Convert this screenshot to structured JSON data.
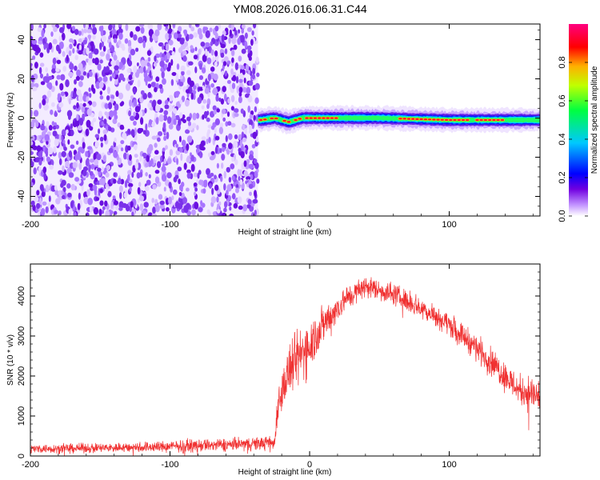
{
  "title": "YM08.2026.016.06.31.C44",
  "chart_data": [
    {
      "type": "heatmap",
      "xlabel": "Height of straight line (km)",
      "ylabel": "Frequency (Hz)",
      "xlim": [
        -200,
        165
      ],
      "ylim": [
        -50,
        48
      ],
      "xticks": [
        -200,
        -100,
        0,
        100
      ],
      "yticks": [
        -40,
        -20,
        0,
        20,
        40
      ],
      "colorbar": {
        "label": "Normalized spectral amplitude",
        "range": [
          0,
          1
        ],
        "ticks": [
          "0.0",
          "0.2",
          "0.4",
          "0.6",
          "0.8"
        ],
        "colormap": [
          "#ffffff",
          "#b070ff",
          "#6000e0",
          "#0000ff",
          "#00c8ff",
          "#00ff60",
          "#c0ff00",
          "#ffb000",
          "#ff0000",
          "#ff0080"
        ]
      },
      "noise_region_x": [
        -200,
        -37
      ],
      "signal_region_x": [
        -37,
        165
      ],
      "ridge": [
        {
          "x": -35,
          "f": -1
        },
        {
          "x": -25,
          "f": 0
        },
        {
          "x": -15,
          "f": -2
        },
        {
          "x": -5,
          "f": 0
        },
        {
          "x": 20,
          "f": 0
        },
        {
          "x": 50,
          "f": 0
        },
        {
          "x": 100,
          "f": -1
        },
        {
          "x": 165,
          "f": -1
        }
      ]
    },
    {
      "type": "line",
      "xlabel": "Height of straight line (km)",
      "ylabel": "SNR (10 * v/v)",
      "xlim": [
        -200,
        165
      ],
      "ylim": [
        0,
        4800
      ],
      "xticks": [
        -200,
        -100,
        0,
        100
      ],
      "yticks": [
        0,
        1000,
        2000,
        3000,
        4000
      ],
      "series": [
        {
          "color": "#f03030",
          "envelope": [
            {
              "x": -200,
              "y": 180,
              "spread": 200
            },
            {
              "x": -150,
              "y": 200,
              "spread": 220
            },
            {
              "x": -100,
              "y": 240,
              "spread": 260
            },
            {
              "x": -60,
              "y": 280,
              "spread": 300
            },
            {
              "x": -25,
              "y": 330,
              "spread": 320
            },
            {
              "x": -23,
              "y": 1300,
              "spread": 800
            },
            {
              "x": -15,
              "y": 2100,
              "spread": 1200
            },
            {
              "x": -5,
              "y": 2600,
              "spread": 1400
            },
            {
              "x": 0,
              "y": 2800,
              "spread": 1200
            },
            {
              "x": 10,
              "y": 3300,
              "spread": 900
            },
            {
              "x": 25,
              "y": 3900,
              "spread": 600
            },
            {
              "x": 40,
              "y": 4250,
              "spread": 500
            },
            {
              "x": 60,
              "y": 4050,
              "spread": 500
            },
            {
              "x": 80,
              "y": 3700,
              "spread": 500
            },
            {
              "x": 100,
              "y": 3300,
              "spread": 500
            },
            {
              "x": 120,
              "y": 2700,
              "spread": 600
            },
            {
              "x": 140,
              "y": 2000,
              "spread": 700
            },
            {
              "x": 150,
              "y": 1650,
              "spread": 700
            },
            {
              "x": 165,
              "y": 1500,
              "spread": 900
            }
          ]
        }
      ]
    }
  ]
}
